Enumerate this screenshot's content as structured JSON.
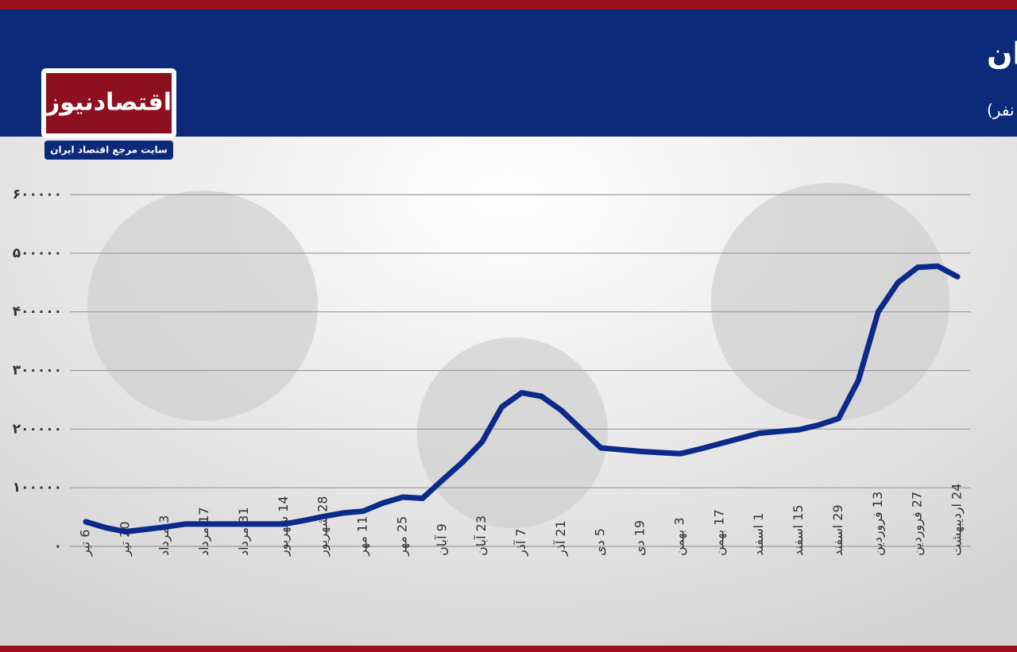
{
  "chart_data": {
    "type": "line",
    "title": "| روند هفتگی بیماران تحت درمان در ایران",
    "subtitle": "(واحد: نفر)",
    "logo": {
      "name": "اقتصادنیوز",
      "tagline": "سایت مرجع اقتصاد ایران"
    },
    "categories": [
      "6 تیر",
      null,
      "20 تیر",
      null,
      "3 مرداد",
      null,
      "17 مرداد",
      null,
      "31 مرداد",
      null,
      "14 شهریور",
      null,
      "28 شهریور",
      null,
      "11 مهر",
      null,
      "25 مهر",
      null,
      "9 آبان",
      null,
      "23 آبان",
      null,
      "7 آذر",
      null,
      "21 آذر",
      null,
      "5 دی",
      null,
      "19 دی",
      null,
      "3 بهمن",
      null,
      "17 بهمن",
      null,
      "1 اسفند",
      null,
      "15 اسفند",
      null,
      "29 اسفند",
      null,
      "13 فروردین",
      null,
      "27 فروردین",
      null,
      "24 اردیبهشت"
    ],
    "values": [
      42000,
      32000,
      25000,
      29000,
      33000,
      38000,
      38000,
      38000,
      38000,
      38000,
      38000,
      44000,
      51000,
      57000,
      60000,
      74000,
      84000,
      82000,
      113000,
      143000,
      178000,
      238000,
      262000,
      256000,
      232000,
      200000,
      168000,
      165000,
      162000,
      160000,
      158000,
      166000,
      175000,
      184000,
      193000,
      196000,
      199000,
      207000,
      218000,
      283000,
      400000,
      450000,
      476000,
      478000,
      460000
    ],
    "color": "#0b2a8a",
    "ylim": [
      0,
      600000
    ],
    "yticks": [
      {
        "value": 0,
        "label": "۰"
      },
      {
        "value": 100000,
        "label": "۱۰۰۰۰۰"
      },
      {
        "value": 200000,
        "label": "۲۰۰۰۰۰"
      },
      {
        "value": 300000,
        "label": "۳۰۰۰۰۰"
      },
      {
        "value": 400000,
        "label": "۴۰۰۰۰۰"
      },
      {
        "value": 500000,
        "label": "۵۰۰۰۰۰"
      },
      {
        "value": 600000,
        "label": "۶۰۰۰۰۰"
      }
    ],
    "grid": true
  }
}
